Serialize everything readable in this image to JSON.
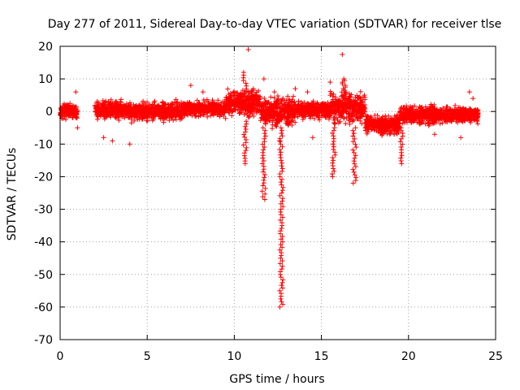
{
  "chart_data": {
    "type": "scatter",
    "title": "Day 277 of 2011, Sidereal Day-to-day VTEC variation (SDTVAR) for receiver tlse",
    "xlabel": "GPS time / hours",
    "ylabel": "SDTVAR / TECUs",
    "xlim": [
      0,
      25
    ],
    "ylim": [
      -70,
      20
    ],
    "xticks": [
      0,
      5,
      10,
      15,
      20,
      25
    ],
    "yticks": [
      20,
      10,
      0,
      -10,
      -20,
      -30,
      -40,
      -50,
      -60,
      -70
    ],
    "grid": true,
    "marker": "+",
    "color": "#ff0000",
    "series": [
      {
        "name": "SDTVAR",
        "bands": [
          {
            "x0": 0.0,
            "x1": 1.0,
            "lo": -3,
            "hi": 3
          },
          {
            "x0": 2.0,
            "x1": 4.0,
            "lo": -3,
            "hi": 4
          },
          {
            "x0": 4.0,
            "x1": 7.0,
            "lo": -4,
            "hi": 4
          },
          {
            "x0": 7.0,
            "x1": 9.5,
            "lo": -2,
            "hi": 4
          },
          {
            "x0": 9.5,
            "x1": 11.5,
            "lo": -3,
            "hi": 8
          },
          {
            "x0": 11.5,
            "x1": 13.5,
            "lo": -6,
            "hi": 6
          },
          {
            "x0": 13.5,
            "x1": 15.5,
            "lo": -3,
            "hi": 4
          },
          {
            "x0": 15.5,
            "x1": 17.5,
            "lo": -5,
            "hi": 7
          },
          {
            "x0": 17.5,
            "x1": 19.5,
            "lo": -8,
            "hi": 0
          },
          {
            "x0": 19.5,
            "x1": 21.5,
            "lo": -5,
            "hi": 3
          },
          {
            "x0": 21.5,
            "x1": 24.0,
            "lo": -4,
            "hi": 2
          }
        ],
        "spikes": [
          {
            "x": 12.7,
            "from": -5,
            "to": -60
          },
          {
            "x": 11.7,
            "from": -5,
            "to": -27
          },
          {
            "x": 15.7,
            "from": -5,
            "to": -20
          },
          {
            "x": 16.9,
            "from": -5,
            "to": -22
          },
          {
            "x": 19.6,
            "from": -5,
            "to": -16
          },
          {
            "x": 10.6,
            "from": -3,
            "to": -16
          },
          {
            "x": 10.6,
            "from": 2,
            "to": 12
          },
          {
            "x": 16.3,
            "from": 4,
            "to": 10
          }
        ],
        "outliers": [
          {
            "x": 10.8,
            "y": 19
          },
          {
            "x": 16.2,
            "y": 17.5
          },
          {
            "x": 0.9,
            "y": 6
          },
          {
            "x": 1.0,
            "y": -5
          },
          {
            "x": 2.5,
            "y": -8
          },
          {
            "x": 3.0,
            "y": -9
          },
          {
            "x": 4.0,
            "y": -10
          },
          {
            "x": 7.5,
            "y": 8
          },
          {
            "x": 8.2,
            "y": 6
          },
          {
            "x": 11.7,
            "y": 10
          },
          {
            "x": 12.3,
            "y": 6
          },
          {
            "x": 12.6,
            "y": -9
          },
          {
            "x": 13.5,
            "y": 7
          },
          {
            "x": 14.2,
            "y": 6
          },
          {
            "x": 14.5,
            "y": -8
          },
          {
            "x": 15.5,
            "y": 9
          },
          {
            "x": 21.5,
            "y": -7
          },
          {
            "x": 23.5,
            "y": 6
          },
          {
            "x": 23.0,
            "y": -8
          },
          {
            "x": 23.7,
            "y": 4
          }
        ]
      }
    ]
  }
}
